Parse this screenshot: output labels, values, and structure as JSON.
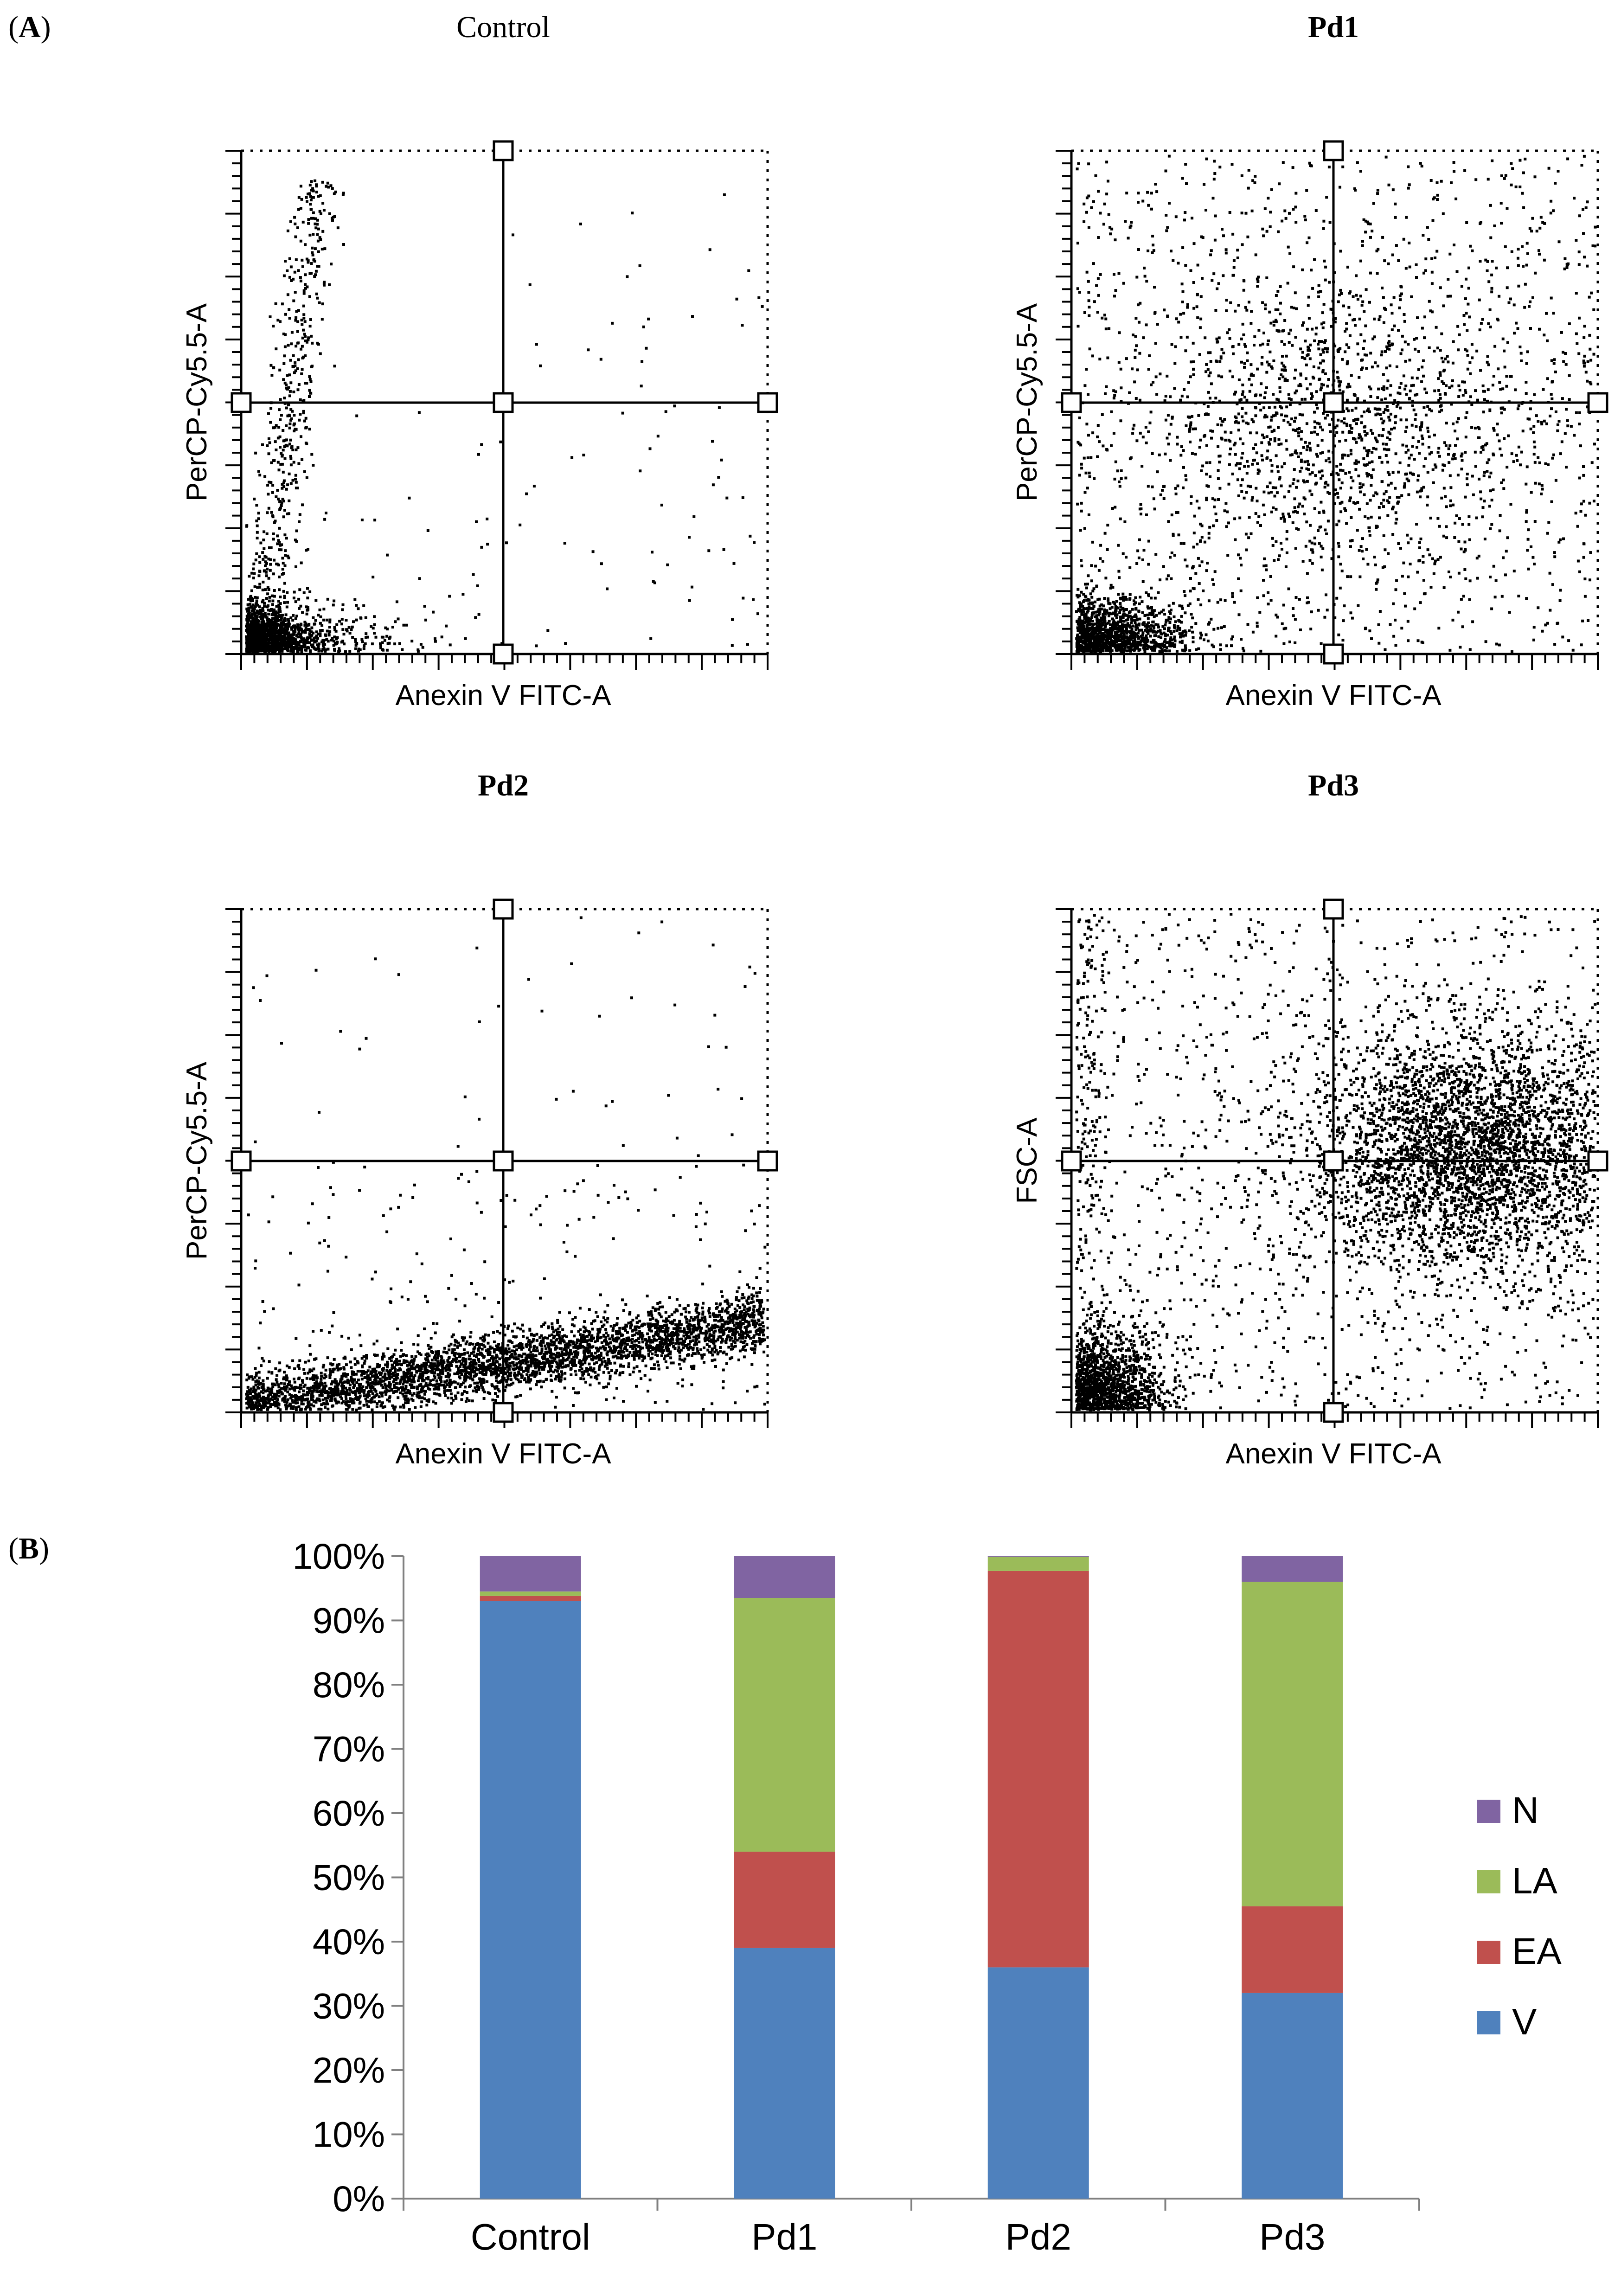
{
  "panel_a_label": "A",
  "panel_b_label": "B",
  "scatter_panels": [
    {
      "title": "Control",
      "title_bold": false,
      "xlabel": "Anexin V FITC-A",
      "ylabel": "PerCP-Cy5.5-A"
    },
    {
      "title": "Pd1",
      "title_bold": true,
      "xlabel": "Anexin V FITC-A",
      "ylabel": "PerCP-Cy5.5-A"
    },
    {
      "title": "Pd2",
      "title_bold": true,
      "xlabel": "Anexin V FITC-A",
      "ylabel": "PerCP-Cy5.5-A"
    },
    {
      "title": "Pd3",
      "title_bold": true,
      "xlabel": "Anexin V FITC-A",
      "ylabel": "FSC-A"
    }
  ],
  "chart_data": {
    "type": "bar",
    "stacked": true,
    "categories": [
      "Control",
      "Pd1",
      "Pd2",
      "Pd3"
    ],
    "series": [
      {
        "name": "V",
        "color": "#4F81BD",
        "values": [
          93,
          39,
          36,
          32
        ]
      },
      {
        "name": "EA",
        "color": "#C0504D",
        "values": [
          0.8,
          15,
          61.7,
          13.5
        ]
      },
      {
        "name": "LA",
        "color": "#9BBB59",
        "values": [
          0.7,
          39.5,
          2.2,
          50.5
        ]
      },
      {
        "name": "N",
        "color": "#8064A2",
        "values": [
          5.5,
          6.5,
          0.1,
          4
        ]
      }
    ],
    "yticks": [
      "0%",
      "10%",
      "20%",
      "30%",
      "40%",
      "50%",
      "60%",
      "70%",
      "80%",
      "90%",
      "100%"
    ],
    "ylim": [
      0,
      100
    ],
    "legend_order": [
      "N",
      "LA",
      "EA",
      "V"
    ],
    "legend_position": "right"
  }
}
